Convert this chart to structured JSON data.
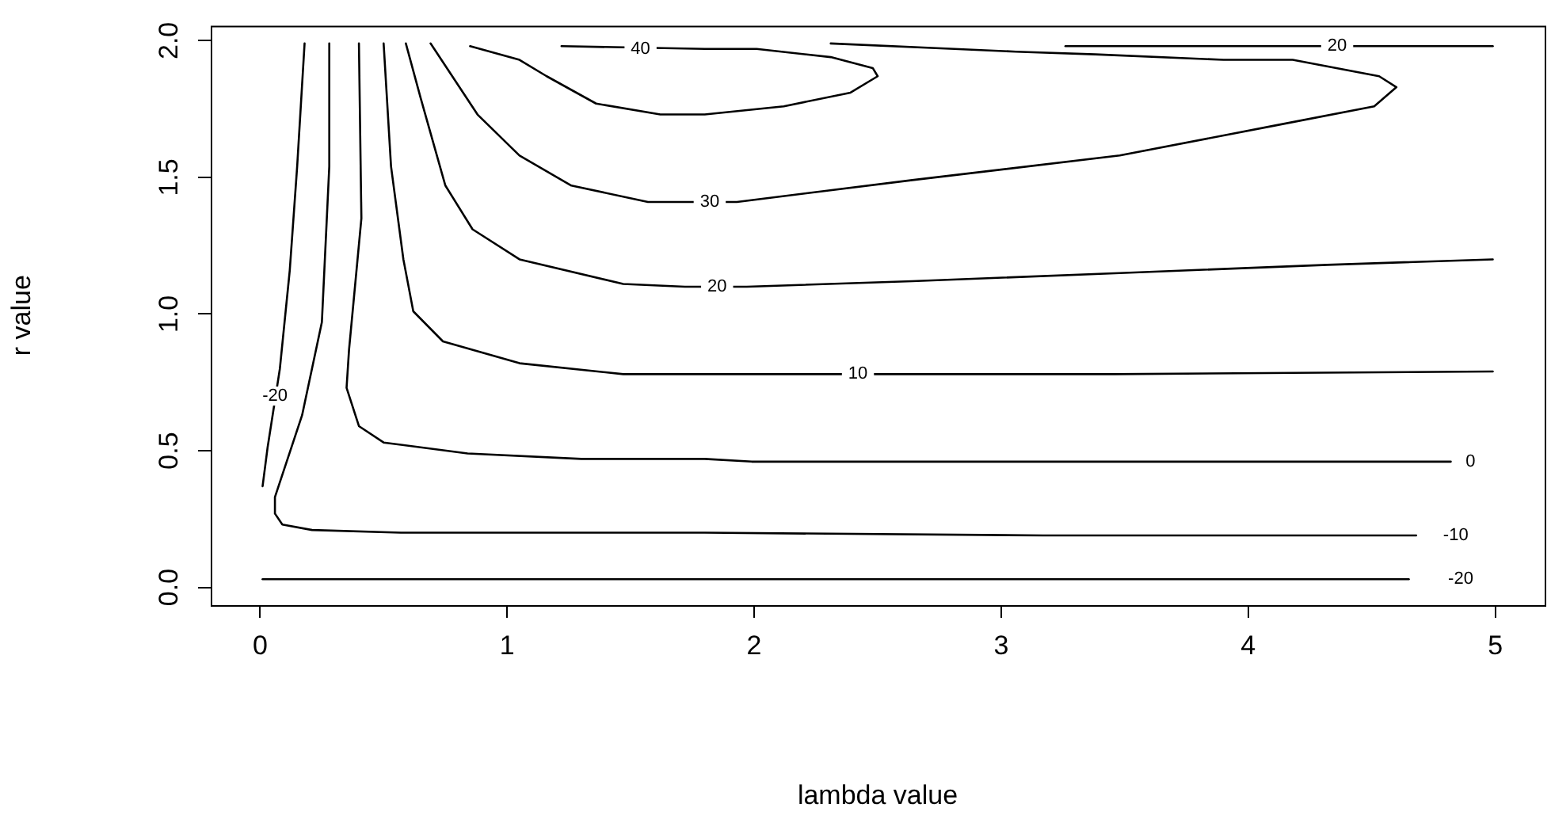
{
  "chart_data": {
    "type": "line",
    "xlabel": "lambda value",
    "ylabel": "r value",
    "xlim": [
      -0.2,
      5.2
    ],
    "ylim": [
      -0.065,
      2.055
    ],
    "xticks": [
      0,
      1,
      2,
      3,
      4,
      5
    ],
    "yticks": [
      {
        "value": 0,
        "label": "0.0"
      },
      {
        "value": 0.5,
        "label": "0.5"
      },
      {
        "value": 1,
        "label": "1.0"
      },
      {
        "value": 1.5,
        "label": "1.5"
      },
      {
        "value": 2,
        "label": "2.0"
      }
    ],
    "grid": false,
    "legend": false,
    "marker": "none",
    "line_style": "solid",
    "series": [
      {
        "color": "#000000",
        "x": [
          0.01,
          4.65
        ],
        "values": [
          0.03,
          0.03
        ]
      },
      {
        "color": "#000000",
        "x": [
          0.01,
          0.03,
          0.08,
          0.12,
          0.15,
          0.18
        ],
        "values": [
          0.37,
          0.51,
          0.8,
          1.16,
          1.54,
          1.99
        ]
      },
      {
        "color": "#000000",
        "x": [
          0.28,
          0.28,
          0.25,
          0.17,
          0.06,
          0.06,
          0.09,
          0.21,
          0.57,
          1.8,
          3.17,
          4.68
        ],
        "values": [
          1.99,
          1.54,
          0.97,
          0.63,
          0.33,
          0.27,
          0.23,
          0.21,
          0.2,
          0.2,
          0.19,
          0.19
        ]
      },
      {
        "color": "#000000",
        "x": [
          0.4,
          0.41,
          0.36,
          0.35,
          0.4,
          0.5,
          0.84,
          1.3,
          1.8,
          1.99,
          4.82
        ],
        "values": [
          1.99,
          1.35,
          0.87,
          0.73,
          0.59,
          0.53,
          0.49,
          0.47,
          0.47,
          0.46,
          0.46
        ]
      },
      {
        "color": "#000000",
        "x": [
          0.5,
          0.53,
          0.58,
          0.62,
          0.74,
          1.05,
          1.47,
          1.8,
          3.46,
          4.99
        ],
        "values": [
          1.99,
          1.54,
          1.2,
          1.01,
          0.9,
          0.82,
          0.78,
          0.78,
          0.78,
          0.79
        ]
      },
      {
        "color": "#000000",
        "x": [
          0.59,
          0.65,
          0.75,
          0.86,
          1.05,
          1.47,
          1.72,
          1.97,
          2.64,
          3.48,
          4.32,
          4.99
        ],
        "values": [
          1.99,
          1.79,
          1.47,
          1.31,
          1.2,
          1.11,
          1.1,
          1.1,
          1.12,
          1.15,
          1.18,
          1.2
        ]
      },
      {
        "color": "#000000",
        "x": [
          3.26,
          4.99
        ],
        "values": [
          1.98,
          1.98
        ]
      },
      {
        "color": "#000000",
        "x": [
          0.69,
          0.88,
          1.05,
          1.26,
          1.57,
          1.93,
          2.64,
          3.48,
          4.11,
          4.51,
          4.6,
          4.53,
          4.18,
          3.9,
          3.38,
          3.06,
          2.81,
          2.31
        ],
        "values": [
          1.99,
          1.73,
          1.58,
          1.47,
          1.41,
          1.41,
          1.49,
          1.58,
          1.69,
          1.76,
          1.83,
          1.87,
          1.93,
          1.93,
          1.95,
          1.96,
          1.97,
          1.99
        ]
      },
      {
        "color": "#000000",
        "x": [
          0.85,
          1.05,
          1.16,
          1.36,
          1.62,
          1.8,
          2.12,
          2.39,
          2.5,
          2.48,
          2.31,
          2.01,
          1.8,
          1.22
        ],
        "values": [
          1.98,
          1.93,
          1.87,
          1.77,
          1.73,
          1.73,
          1.76,
          1.81,
          1.87,
          1.9,
          1.94,
          1.97,
          1.97,
          1.98
        ]
      }
    ],
    "annotations": [
      {
        "text": "-20",
        "x": 4.86,
        "y": 0.03
      },
      {
        "text": "-20",
        "x": 0.06,
        "y": 0.7
      },
      {
        "text": "-10",
        "x": 4.84,
        "y": 0.19
      },
      {
        "text": "0",
        "x": 4.9,
        "y": 0.46
      },
      {
        "text": "10",
        "x": 2.42,
        "y": 0.78
      },
      {
        "text": "20",
        "x": 1.85,
        "y": 1.1
      },
      {
        "text": "20",
        "x": 4.36,
        "y": 1.98
      },
      {
        "text": "30",
        "x": 1.82,
        "y": 1.41
      },
      {
        "text": "40",
        "x": 1.54,
        "y": 1.97
      }
    ]
  }
}
